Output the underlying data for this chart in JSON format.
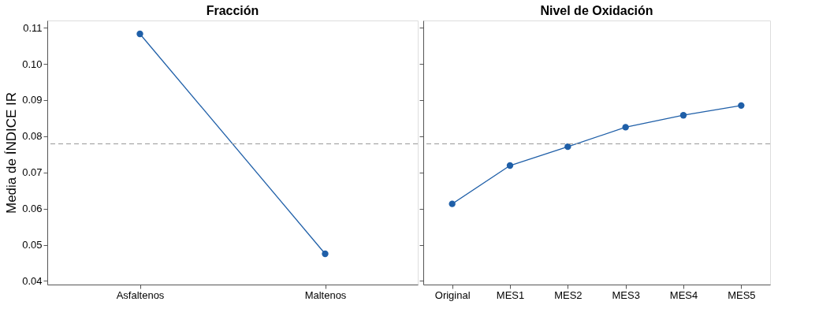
{
  "chart_data": [
    {
      "type": "line",
      "title": "Fracción",
      "ylabel": "Media de ÍNDICE IR",
      "categories": [
        "Asfaltenos",
        "Maltenos"
      ],
      "series": [
        {
          "color": "#1f5fa8",
          "values": [
            0.1083,
            0.0475
          ]
        }
      ],
      "ylim": [
        0.039,
        0.112
      ],
      "yticks": [
        0.04,
        0.05,
        0.06,
        0.07,
        0.08,
        0.09,
        {
          "value": 0.1,
          "label": "0.10"
        },
        0.11
      ],
      "marker": "circle",
      "line_style": "solid",
      "grid": false,
      "ref_lines": [
        {
          "axis": "y",
          "value": 0.0779,
          "color": "#999999",
          "line_style": "dashed"
        }
      ]
    },
    {
      "type": "line",
      "title": "Nivel de Oxidación",
      "categories": [
        "Original",
        "MES1",
        "MES2",
        "MES3",
        "MES4",
        "MES5"
      ],
      "series": [
        {
          "color": "#1f5fa8",
          "values": [
            0.0613,
            0.0719,
            0.0771,
            0.0825,
            0.0858,
            0.0885
          ]
        }
      ],
      "ylim": [
        0.039,
        0.112
      ],
      "yticks": [
        0.04,
        0.05,
        0.06,
        0.07,
        0.08,
        0.09,
        0.1,
        0.11
      ],
      "tick_labels": "x",
      "marker": "circle",
      "line_style": "solid",
      "grid": false,
      "ref_lines": [
        {
          "axis": "y",
          "value": 0.0779,
          "color": "#999999",
          "line_style": "dashed"
        }
      ]
    }
  ]
}
